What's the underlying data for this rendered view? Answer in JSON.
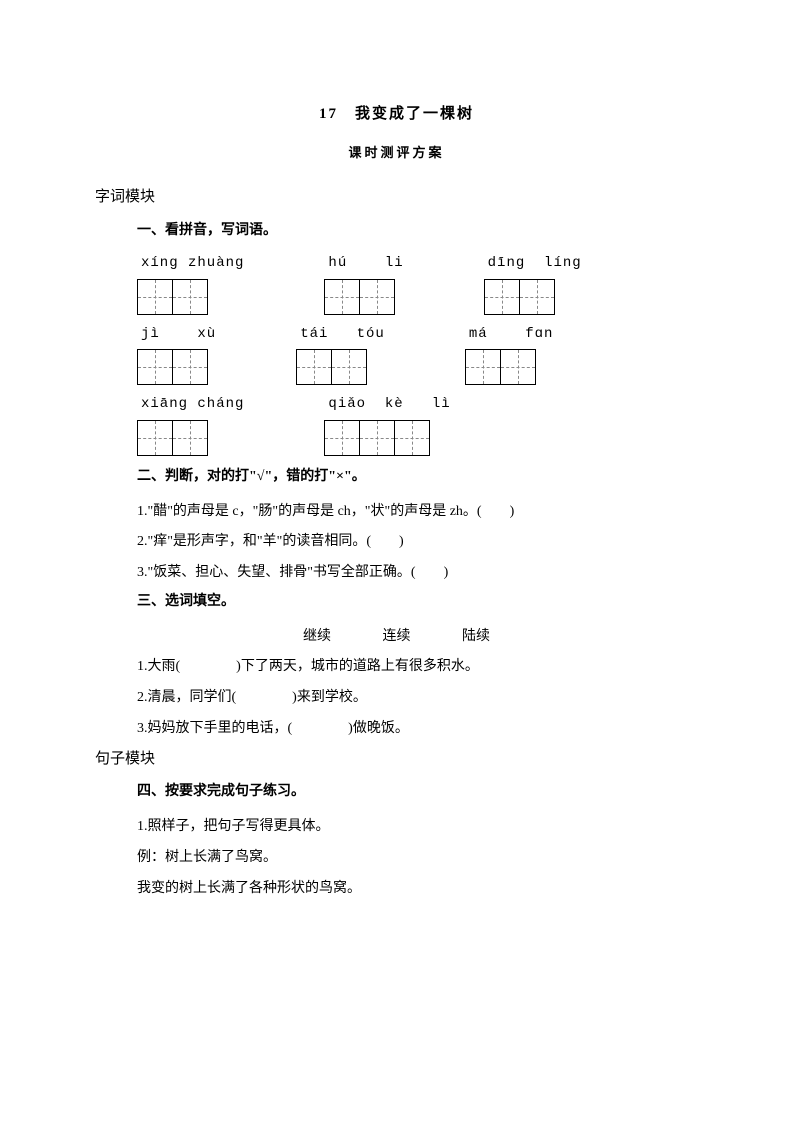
{
  "title": "17　我变成了一棵树",
  "subtitle": "课时测评方案",
  "modules": {
    "word": "字词模块",
    "sentence": "句子模块"
  },
  "sec1": {
    "head": "一、看拼音，写词语。",
    "items": [
      {
        "pinyin": "xínɡ zhuànɡ",
        "cells": 2
      },
      {
        "pinyin": "hú    li",
        "cells": 2
      },
      {
        "pinyin": "dīnɡ  línɡ",
        "cells": 2
      },
      {
        "pinyin": "jì    xù",
        "cells": 2
      },
      {
        "pinyin": "tái   tóu",
        "cells": 2
      },
      {
        "pinyin": "má    fɑn",
        "cells": 2
      },
      {
        "pinyin": "xiānɡ chánɡ",
        "cells": 2
      },
      {
        "pinyin": "qiǎo  kè   lì",
        "cells": 3
      }
    ]
  },
  "sec2": {
    "head": "二、判断，对的打\"√\"，错的打\"×\"。",
    "q1": "1.\"醋\"的声母是 c，\"肠\"的声母是 ch，\"状\"的声母是 zh。(　　)",
    "q2": "2.\"痒\"是形声字，和\"羊\"的读音相同。(　　)",
    "q3": "3.\"饭菜、担心、失望、排骨\"书写全部正确。(　　)"
  },
  "sec3": {
    "head": "三、选词填空。",
    "options": {
      "a": "继续",
      "b": "连续",
      "c": "陆续"
    },
    "q1": "1.大雨(　　　　)下了两天，城市的道路上有很多积水。",
    "q2": "2.清晨，同学们(　　　　)来到学校。",
    "q3": "3.妈妈放下手里的电话，(　　　　)做晚饭。"
  },
  "sec4": {
    "head": "四、按要求完成句子练习。",
    "q1": "1.照样子，把句子写得更具体。",
    "ex1": "例：树上长满了鸟窝。",
    "ex2": "我变的树上长满了各种形状的鸟窝。"
  }
}
